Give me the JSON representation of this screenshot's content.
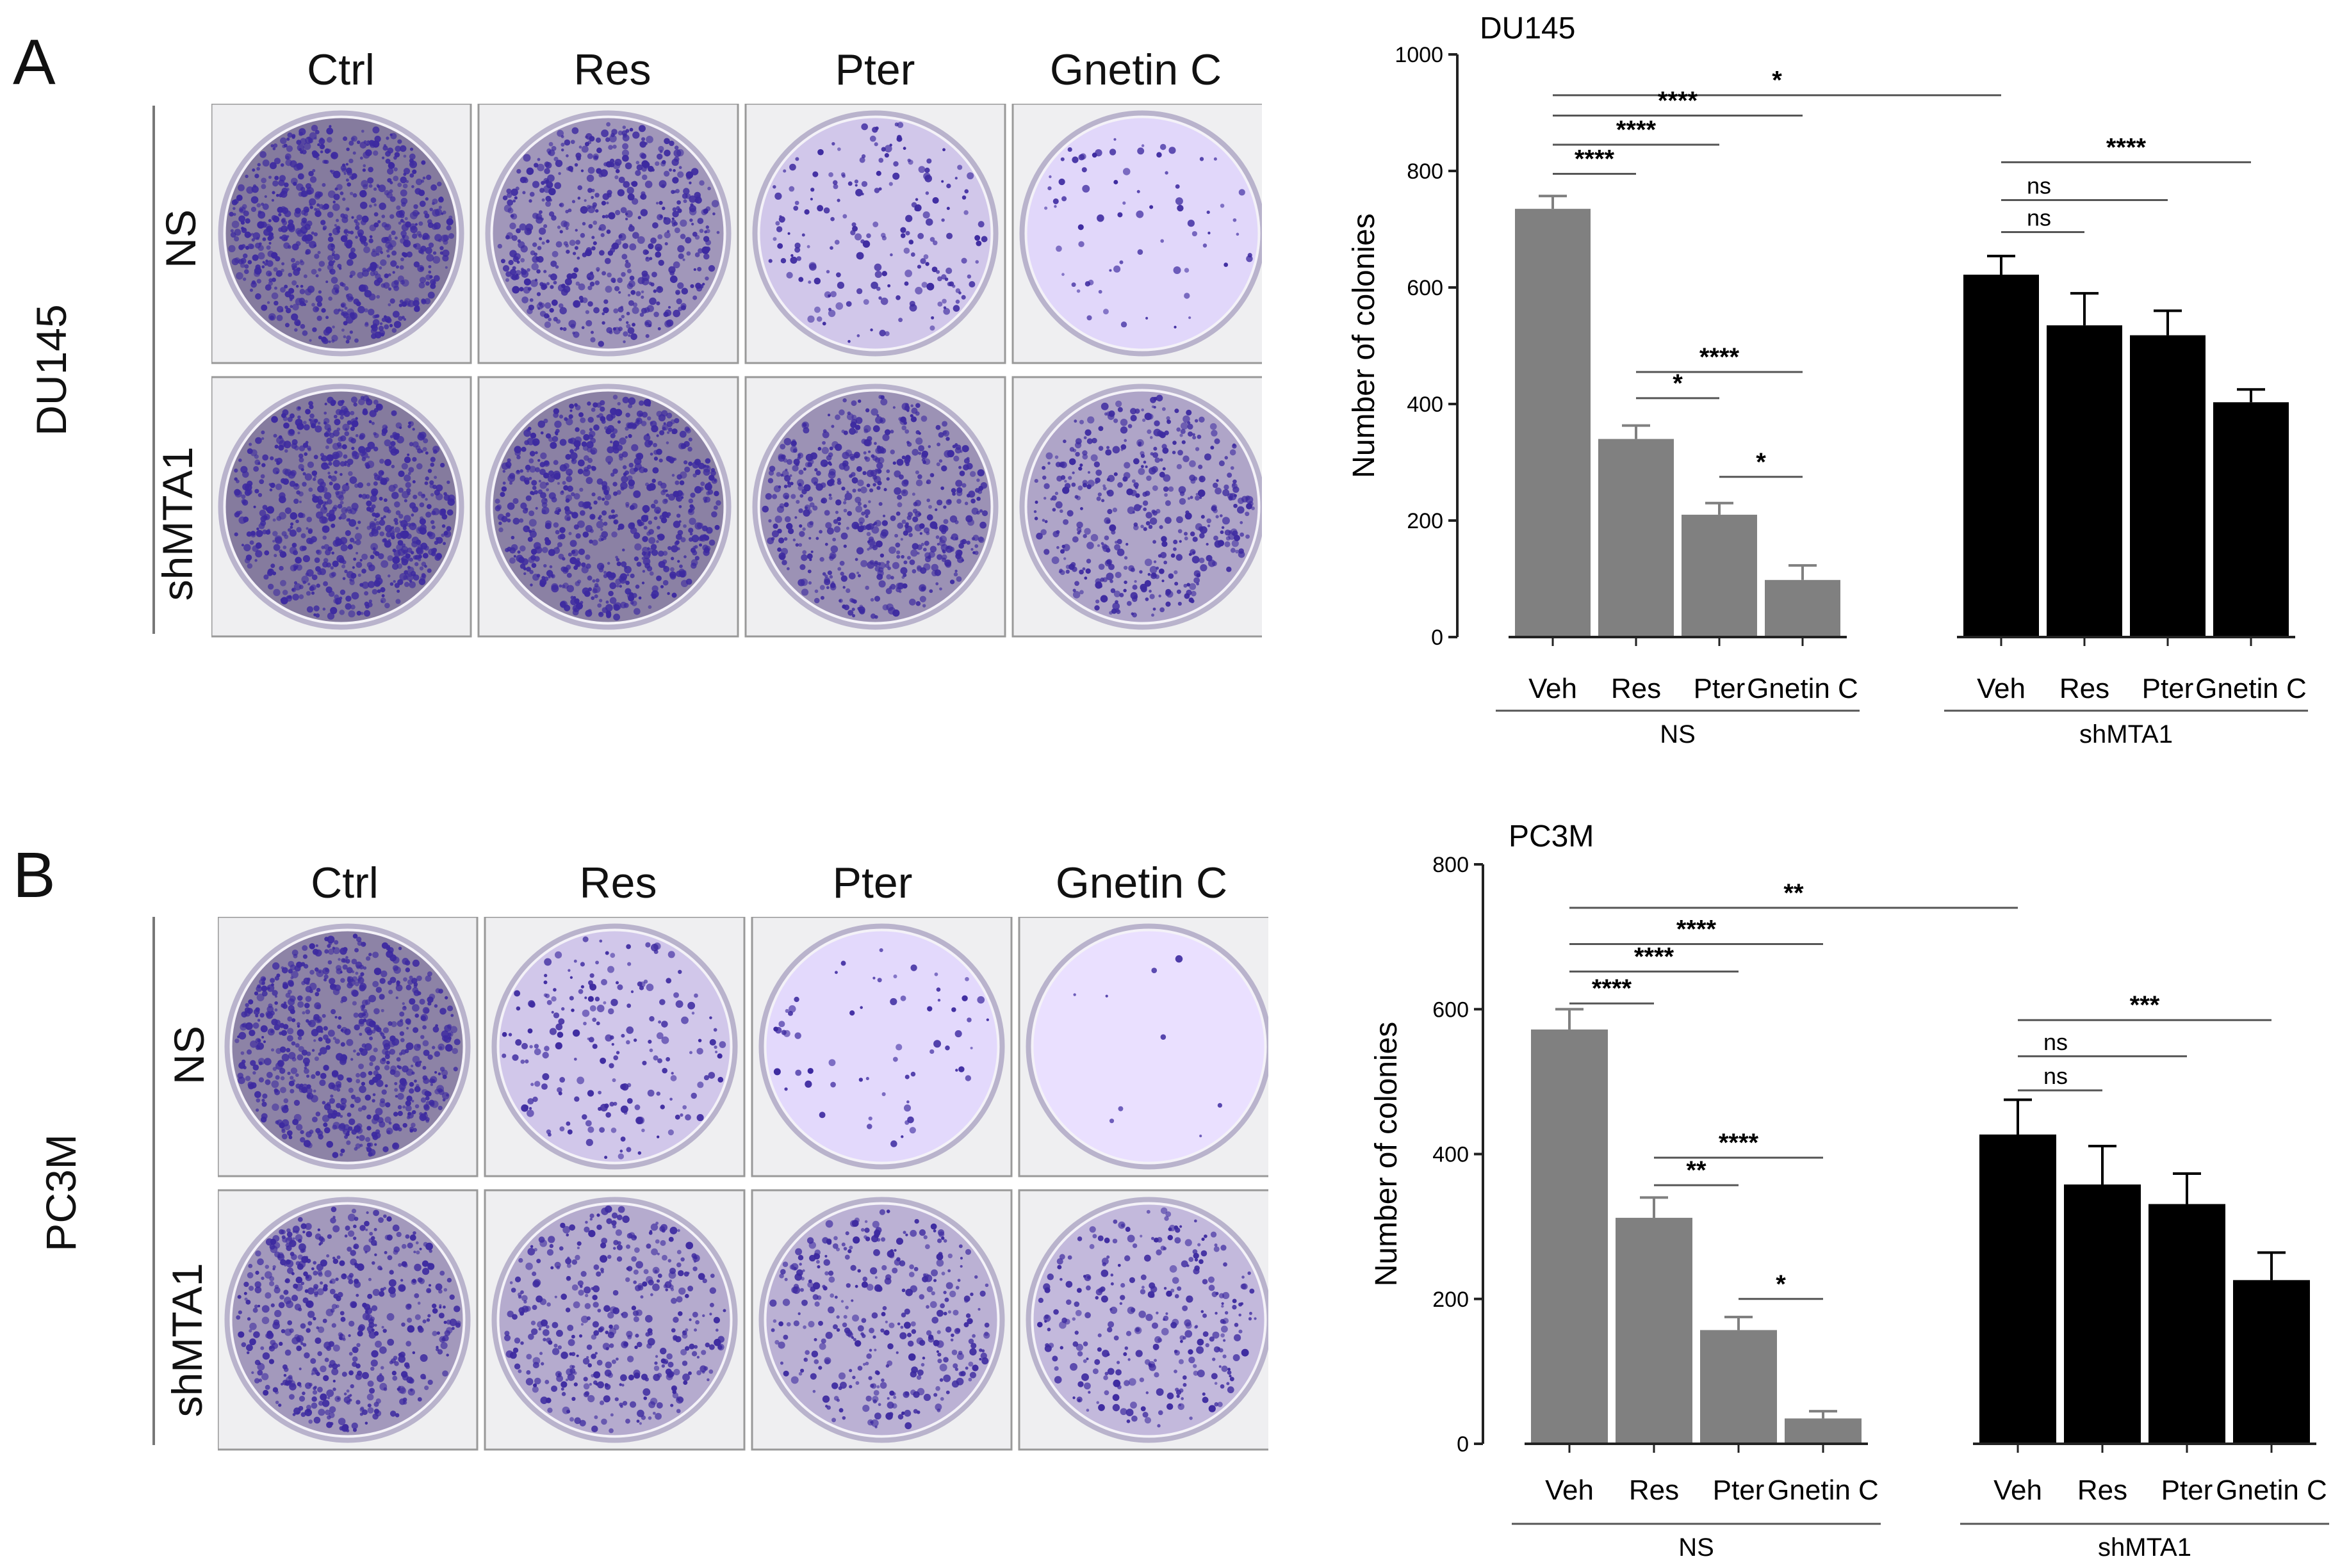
{
  "panels": [
    {
      "letter": "A",
      "cell_line": "DU145",
      "columns": [
        "Ctrl",
        "Res",
        "Pter",
        "Gnetin C"
      ],
      "rows": [
        "NS",
        "shMTA1"
      ],
      "density": [
        [
          0.85,
          0.62,
          0.22,
          0.08
        ],
        [
          0.85,
          0.8,
          0.66,
          0.5
        ]
      ],
      "dots_colors": {
        "stain": "#3d2aa0",
        "dish": "#ddd8ec"
      }
    },
    {
      "letter": "B",
      "cell_line": "PC3M",
      "columns": [
        "Ctrl",
        "Res",
        "Pter",
        "Gnetin C"
      ],
      "rows": [
        "NS",
        "shMTA1"
      ],
      "density": [
        [
          0.78,
          0.22,
          0.07,
          0.01
        ],
        [
          0.6,
          0.45,
          0.4,
          0.33
        ]
      ],
      "dots_colors": {
        "stain": "#3d2aa0",
        "dish": "#ddd8ec"
      }
    }
  ],
  "chart_data": [
    {
      "type": "bar",
      "title": "DU145",
      "xlabel": "",
      "ylabel": "Number of colonies",
      "ylim": [
        0,
        1000
      ],
      "yticks": [
        0,
        200,
        400,
        600,
        800,
        1000
      ],
      "groups": [
        {
          "name": "NS",
          "color": "#808080",
          "categories": [
            "Veh",
            "Res",
            "Pter",
            "Gnetin C"
          ],
          "values": [
            735,
            340,
            210,
            98
          ],
          "errors": [
            22,
            23,
            20,
            25
          ]
        },
        {
          "name": "shMTA1",
          "color": "#000000",
          "categories": [
            "Veh",
            "Res",
            "Pter",
            "Gnetin C"
          ],
          "values": [
            622,
            535,
            518,
            403
          ],
          "errors": [
            32,
            55,
            42,
            22
          ]
        }
      ],
      "significance": [
        {
          "from": [
            0,
            0
          ],
          "to": [
            1,
            0
          ],
          "y": 930,
          "label": "*"
        },
        {
          "from": [
            0,
            0
          ],
          "to": [
            0,
            3
          ],
          "y": 895,
          "label": "****"
        },
        {
          "from": [
            0,
            0
          ],
          "to": [
            0,
            2
          ],
          "y": 845,
          "label": "****"
        },
        {
          "from": [
            0,
            0
          ],
          "to": [
            0,
            1
          ],
          "y": 795,
          "label": "****"
        },
        {
          "from": [
            0,
            1
          ],
          "to": [
            0,
            3
          ],
          "y": 455,
          "label": "****"
        },
        {
          "from": [
            0,
            1
          ],
          "to": [
            0,
            2
          ],
          "y": 410,
          "label": "*"
        },
        {
          "from": [
            0,
            2
          ],
          "to": [
            0,
            3
          ],
          "y": 275,
          "label": "*"
        },
        {
          "from": [
            1,
            0
          ],
          "to": [
            1,
            3
          ],
          "y": 815,
          "label": "****"
        },
        {
          "from": [
            1,
            0
          ],
          "to": [
            1,
            2
          ],
          "y": 750,
          "label": "ns"
        },
        {
          "from": [
            1,
            0
          ],
          "to": [
            1,
            1
          ],
          "y": 695,
          "label": "ns"
        }
      ]
    },
    {
      "type": "bar",
      "title": "PC3M",
      "xlabel": "",
      "ylabel": "Number of colonies",
      "ylim": [
        0,
        800
      ],
      "yticks": [
        0,
        200,
        400,
        600,
        800
      ],
      "groups": [
        {
          "name": "NS",
          "color": "#808080",
          "categories": [
            "Veh",
            "Res",
            "Pter",
            "Gnetin C"
          ],
          "values": [
            572,
            312,
            157,
            35
          ],
          "errors": [
            28,
            28,
            18,
            10
          ]
        },
        {
          "name": "shMTA1",
          "color": "#000000",
          "categories": [
            "Veh",
            "Res",
            "Pter",
            "Gnetin C"
          ],
          "values": [
            427,
            358,
            331,
            226
          ],
          "errors": [
            48,
            53,
            42,
            38
          ]
        }
      ],
      "significance": [
        {
          "from": [
            0,
            0
          ],
          "to": [
            1,
            0
          ],
          "y": 740,
          "label": "**"
        },
        {
          "from": [
            0,
            0
          ],
          "to": [
            0,
            3
          ],
          "y": 690,
          "label": "****"
        },
        {
          "from": [
            0,
            0
          ],
          "to": [
            0,
            2
          ],
          "y": 652,
          "label": "****"
        },
        {
          "from": [
            0,
            0
          ],
          "to": [
            0,
            1
          ],
          "y": 608,
          "label": "****"
        },
        {
          "from": [
            0,
            1
          ],
          "to": [
            0,
            3
          ],
          "y": 395,
          "label": "****"
        },
        {
          "from": [
            0,
            1
          ],
          "to": [
            0,
            2
          ],
          "y": 357,
          "label": "**"
        },
        {
          "from": [
            0,
            2
          ],
          "to": [
            0,
            3
          ],
          "y": 200,
          "label": "*"
        },
        {
          "from": [
            1,
            0
          ],
          "to": [
            1,
            3
          ],
          "y": 585,
          "label": "***"
        },
        {
          "from": [
            1,
            0
          ],
          "to": [
            1,
            2
          ],
          "y": 535,
          "label": "ns"
        },
        {
          "from": [
            1,
            0
          ],
          "to": [
            1,
            1
          ],
          "y": 488,
          "label": "ns"
        }
      ]
    }
  ]
}
